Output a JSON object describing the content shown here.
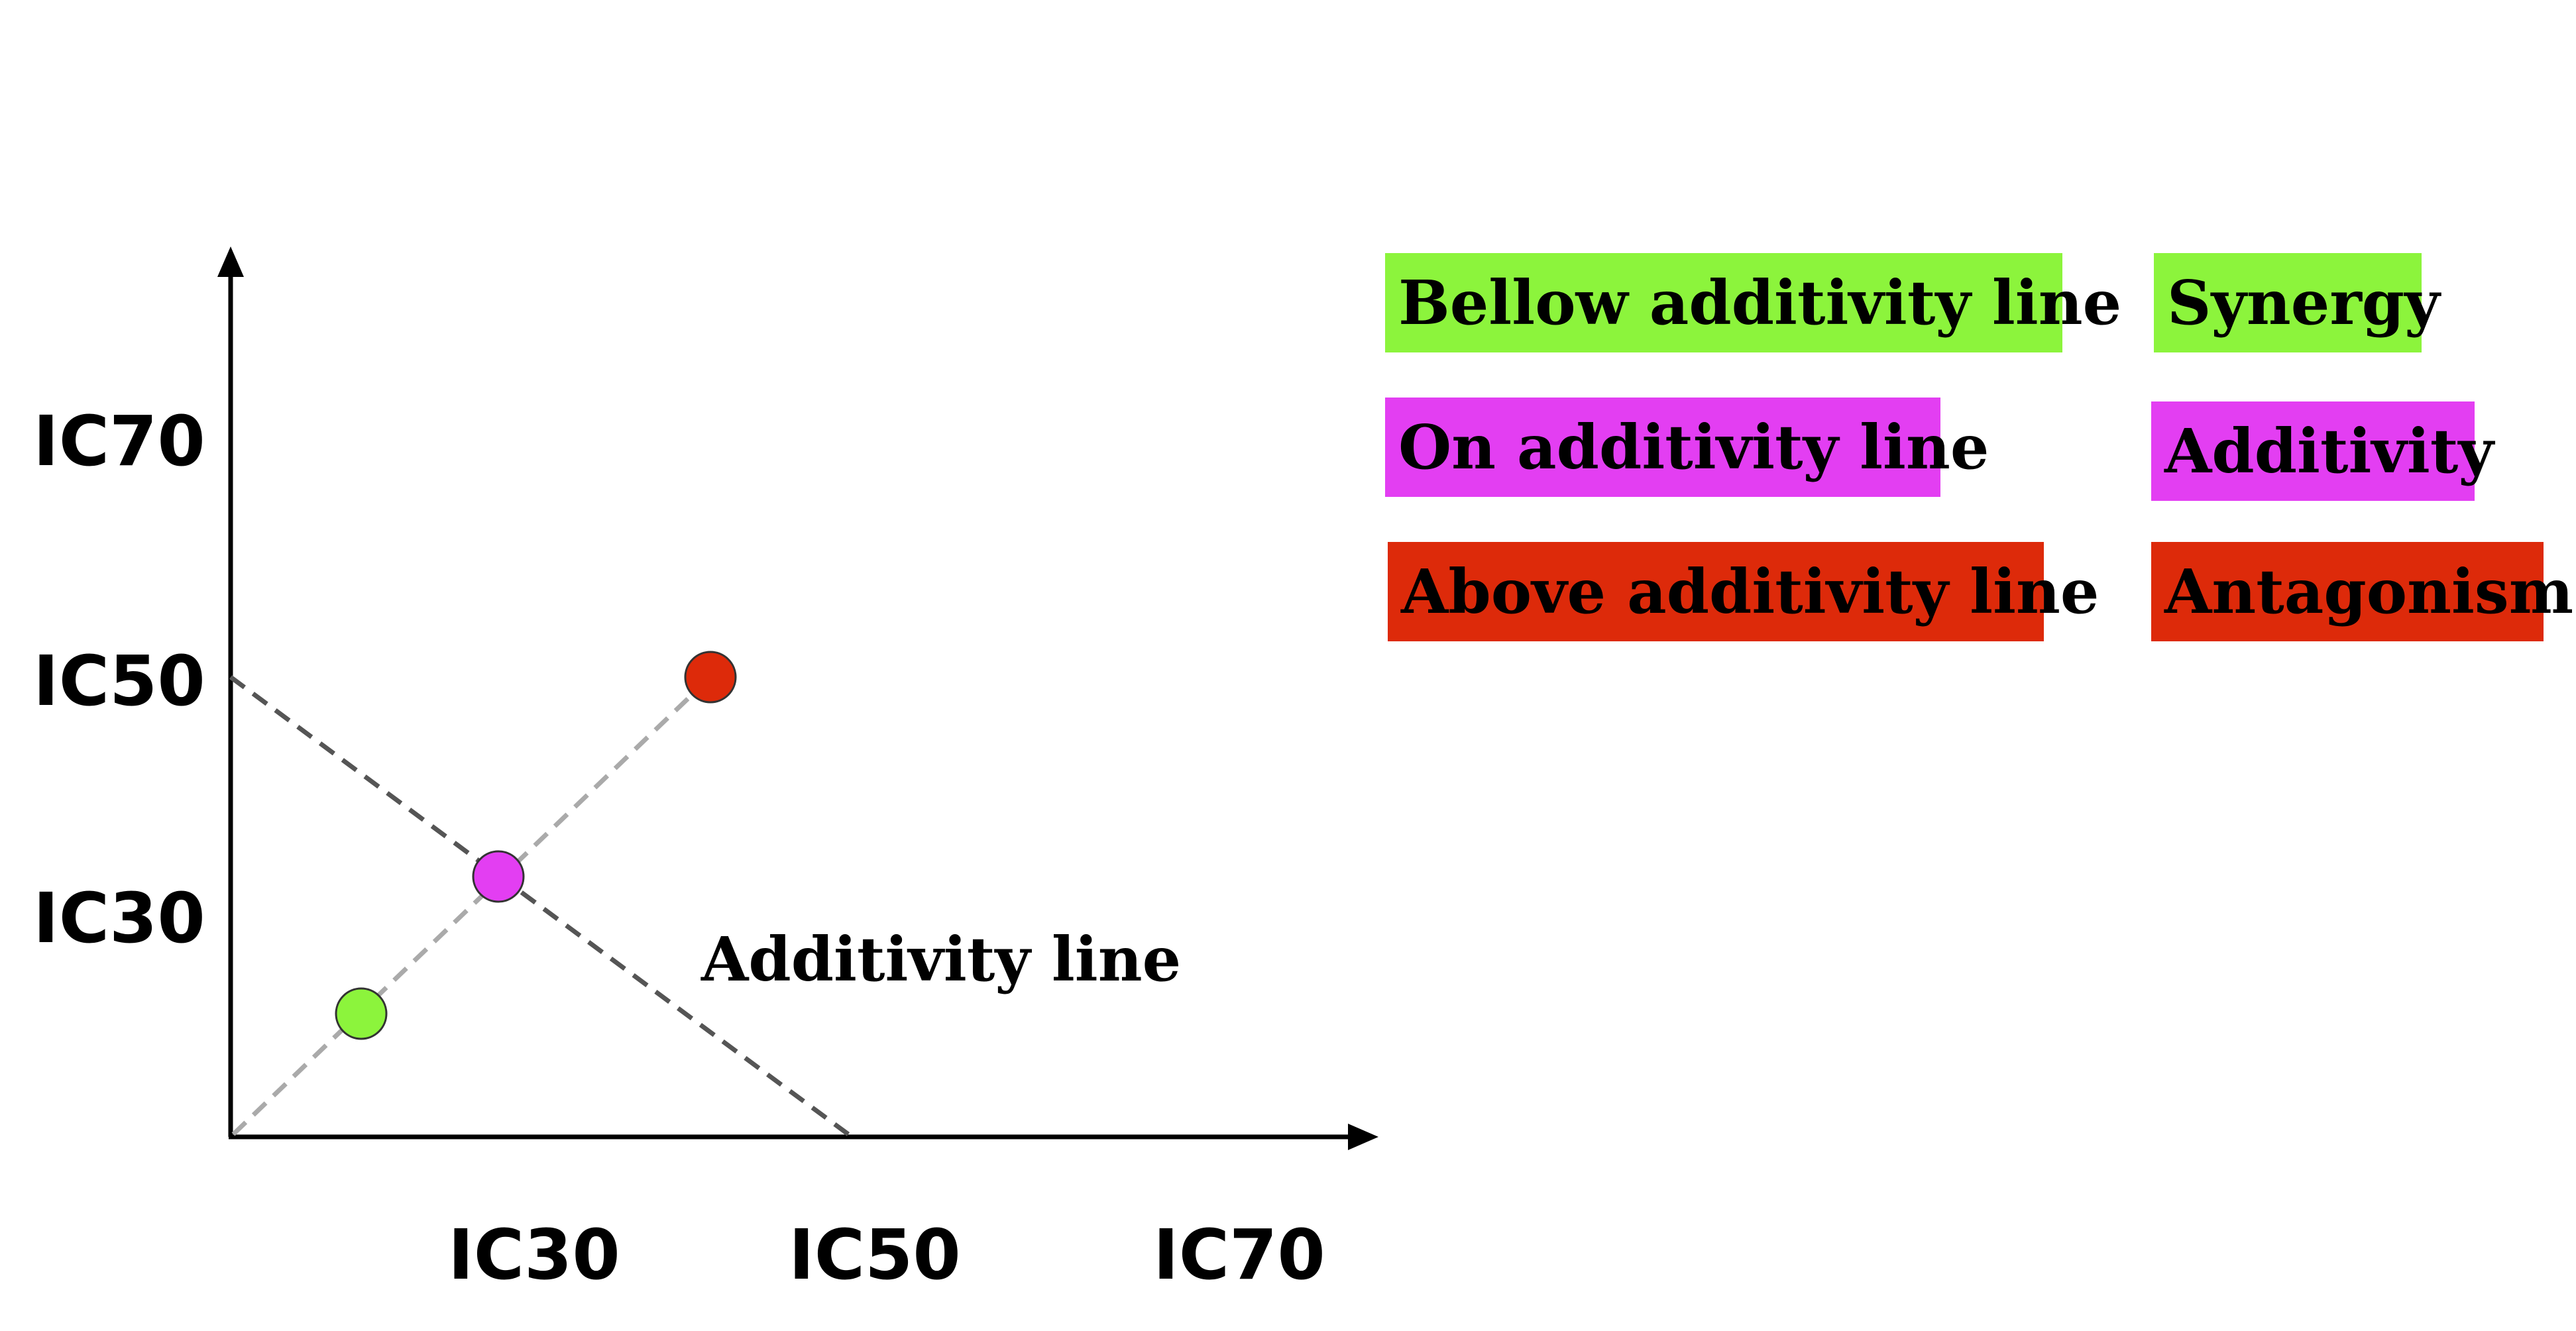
{
  "diagram": {
    "y_ticks": [
      "IC70",
      "IC50",
      "IC30"
    ],
    "x_ticks": [
      "IC30",
      "IC50",
      "IC70"
    ],
    "line_label": "Additivity line",
    "points": [
      {
        "name": "green-point",
        "color": "#8cf43c"
      },
      {
        "name": "magenta-point",
        "color": "#e33ef2"
      },
      {
        "name": "red-point",
        "color": "#dd2a0a"
      }
    ]
  },
  "legend": [
    {
      "condition": "Bellow additivity line",
      "effect": "Synergy",
      "color": "#8cf43c"
    },
    {
      "condition": "On additivity line",
      "effect": "Additivity",
      "color": "#e33ef2"
    },
    {
      "condition": "Above additivity line",
      "effect": "Antagonism",
      "color": "#dd2a0a"
    }
  ]
}
